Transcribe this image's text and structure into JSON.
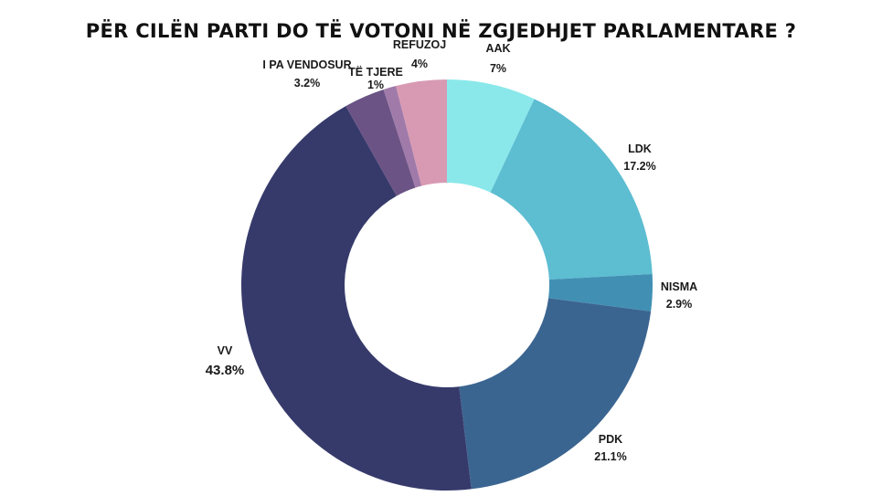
{
  "chart_data": {
    "type": "pie",
    "variant": "donut",
    "title": "PËR CILËN PARTI DO TË VOTONI NË ZGJEDHJET PARLAMENTARE ?",
    "legend": "none",
    "slices": [
      {
        "label": "AAK",
        "value": 7,
        "value_label": "7%",
        "color": "#8ae8ea"
      },
      {
        "label": "LDK",
        "value": 17.2,
        "value_label": "17.2%",
        "color": "#5dbdd1"
      },
      {
        "label": "NISMA",
        "value": 2.9,
        "value_label": "2.9%",
        "color": "#4190b4"
      },
      {
        "label": "PDK",
        "value": 21.1,
        "value_label": "21.1%",
        "color": "#3b6591"
      },
      {
        "label": "VV",
        "value": 43.8,
        "value_label": "43.8%",
        "color": "#363a6b"
      },
      {
        "label": "I PA VENDOSUR",
        "value": 3.2,
        "value_label": "3.2%",
        "color": "#6b5385"
      },
      {
        "label": "TË TJERE",
        "value": 1,
        "value_label": "1%",
        "color": "#a07aa9"
      },
      {
        "label": "REFUZOJ",
        "value": 4,
        "value_label": "4%",
        "color": "#d89ab3"
      }
    ]
  }
}
